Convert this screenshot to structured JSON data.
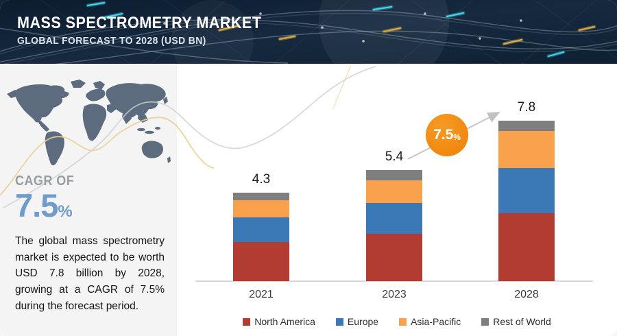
{
  "header": {
    "title": "MASS SPECTROMETRY MARKET",
    "subtitle": "GLOBAL FORECAST TO 2028 (USD BN)"
  },
  "sidebar": {
    "cagr_label": "CAGR OF",
    "cagr_value": "7.5",
    "cagr_unit": "%",
    "description": "The global mass spectrometry market is expected to be worth USD 7.8 billion by 2028, growing at a CAGR of 7.5% during the forecast period."
  },
  "chart_data": {
    "type": "bar",
    "stacked": true,
    "title": "Mass Spectrometry Market, Global Forecast to 2028 (USD BN)",
    "xlabel": "",
    "ylabel": "",
    "grid": false,
    "legend_position": "bottom",
    "categories": [
      "2021",
      "2023",
      "2028"
    ],
    "totals": [
      "4.3",
      "5.4",
      "7.8"
    ],
    "series": [
      {
        "name": "North America",
        "color": "#b23b32",
        "values": [
          1.9,
          2.3,
          3.3
        ]
      },
      {
        "name": "Europe",
        "color": "#3a79b6",
        "values": [
          1.2,
          1.5,
          2.2
        ]
      },
      {
        "name": "Asia-Pacific",
        "color": "#f9a04d",
        "values": [
          0.85,
          1.1,
          1.8
        ]
      },
      {
        "name": "Rest of World",
        "color": "#7f7f7f",
        "values": [
          0.35,
          0.5,
          0.5
        ]
      }
    ],
    "annotation": {
      "value": "7.5",
      "unit": "%",
      "color": "#f1870e"
    }
  },
  "colors": {
    "header_bg": "#13243a",
    "sidebar_bg": "#f4f4f5",
    "cagr_accent": "#6f9ccc",
    "axis": "#d9d9d9",
    "map": "#5c6b7d",
    "wave_yellow": "#e9d092",
    "wave_gray": "#d0d0d0"
  }
}
